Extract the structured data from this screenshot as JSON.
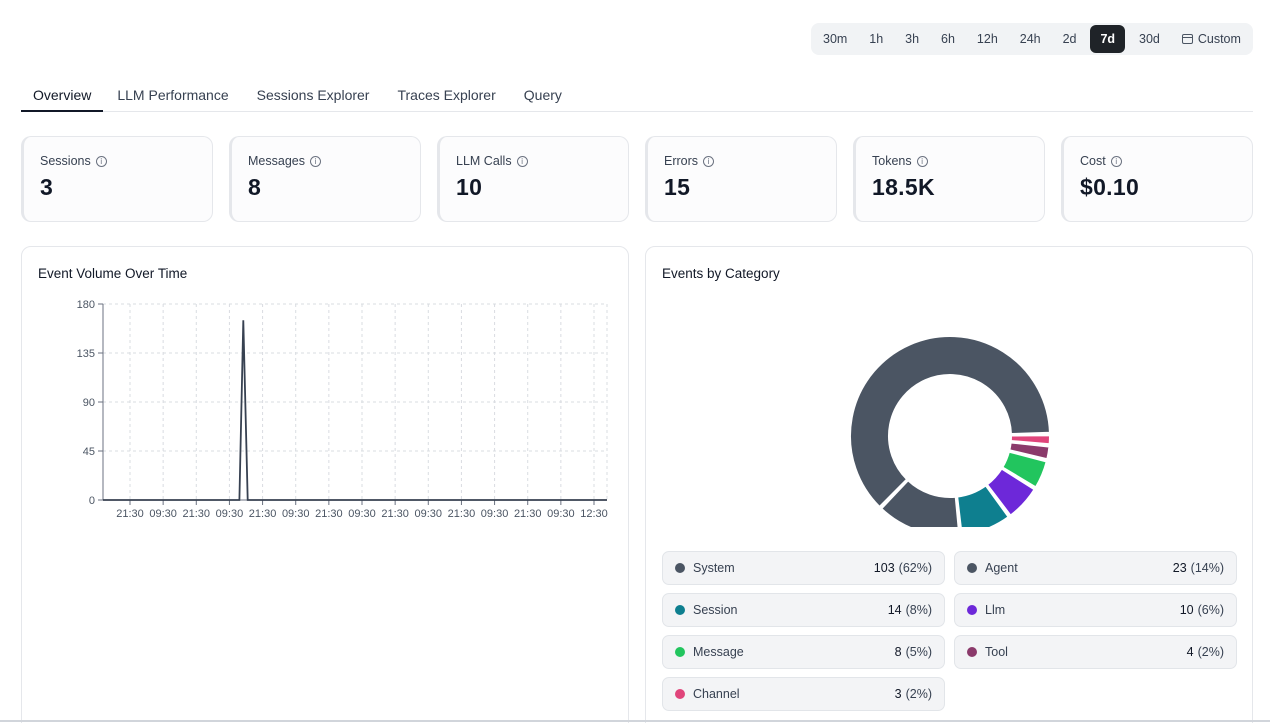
{
  "time_ranges": [
    {
      "label": "30m",
      "active": false
    },
    {
      "label": "1h",
      "active": false
    },
    {
      "label": "3h",
      "active": false
    },
    {
      "label": "6h",
      "active": false
    },
    {
      "label": "12h",
      "active": false
    },
    {
      "label": "24h",
      "active": false
    },
    {
      "label": "2d",
      "active": false
    },
    {
      "label": "7d",
      "active": true
    },
    {
      "label": "30d",
      "active": false
    },
    {
      "label": "Custom",
      "active": false,
      "icon": "calendar-icon"
    }
  ],
  "tabs": [
    {
      "label": "Overview",
      "active": true
    },
    {
      "label": "LLM Performance",
      "active": false
    },
    {
      "label": "Sessions Explorer",
      "active": false
    },
    {
      "label": "Traces Explorer",
      "active": false
    },
    {
      "label": "Query",
      "active": false
    }
  ],
  "stats": [
    {
      "label": "Sessions",
      "value": "3"
    },
    {
      "label": "Messages",
      "value": "8"
    },
    {
      "label": "LLM Calls",
      "value": "10"
    },
    {
      "label": "Errors",
      "value": "15"
    },
    {
      "label": "Tokens",
      "value": "18.5K"
    },
    {
      "label": "Cost",
      "value": "$0.10"
    }
  ],
  "event_volume": {
    "title": "Event Volume Over Time"
  },
  "events_by_category": {
    "title": "Events by Category"
  },
  "chart_data": [
    {
      "type": "line",
      "title": "Event Volume Over Time",
      "x": [
        "21:30",
        "09:30",
        "21:30",
        "09:30",
        "21:30",
        "09:30",
        "21:30",
        "09:30",
        "21:30",
        "09:30",
        "21:30",
        "09:30",
        "21:30",
        "09:30",
        "12:30"
      ],
      "ylim": [
        0,
        180
      ],
      "yticks": [
        0,
        45,
        90,
        135,
        180
      ],
      "grid": true,
      "color": "#374151",
      "series": [
        {
          "points": [
            [
              0,
              0
            ],
            [
              3.3,
              0
            ],
            [
              3.42,
              165
            ],
            [
              3.55,
              0
            ],
            [
              14,
              0
            ]
          ]
        }
      ]
    },
    {
      "type": "pie",
      "title": "Events by Category",
      "donut": true,
      "slices": [
        {
          "label": "System",
          "value": 103,
          "pct": "62%",
          "color": "#4b5563"
        },
        {
          "label": "Agent",
          "value": 23,
          "pct": "14%",
          "color": "#4b5563"
        },
        {
          "label": "Session",
          "value": 14,
          "pct": "8%",
          "color": "#0e7f8f"
        },
        {
          "label": "Llm",
          "value": 10,
          "pct": "6%",
          "color": "#6d28d9"
        },
        {
          "label": "Message",
          "value": 8,
          "pct": "5%",
          "color": "#22c55e"
        },
        {
          "label": "Tool",
          "value": 4,
          "pct": "2%",
          "color": "#8b3a6b"
        },
        {
          "label": "Channel",
          "value": 3,
          "pct": "2%",
          "color": "#e0457b"
        }
      ]
    }
  ]
}
